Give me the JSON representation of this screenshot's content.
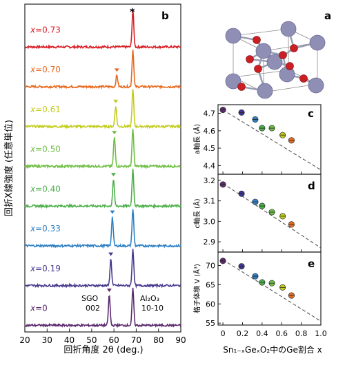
{
  "panel_labels": {
    "a": "a",
    "b": "b",
    "c": "c",
    "d": "d",
    "e": "e"
  },
  "crystal": {
    "icon": "rutile-crystal-structure-icon",
    "colors": {
      "cation": "#8f8fb6",
      "oxygen": "#cc1f24",
      "bond": "#9aa0b4",
      "cell": "#8a8a8a"
    }
  },
  "chart_data": [
    {
      "id": "b",
      "type": "line",
      "title": "",
      "xlabel": "回折角度 2θ (deg.)",
      "ylabel": "回折X線強度 (任意単位)",
      "xlim": [
        20,
        90
      ],
      "xticks": [
        "20",
        "30",
        "40",
        "50",
        "60",
        "70",
        "80",
        "90"
      ],
      "series": [
        {
          "name": "x=0.73",
          "color": "#d81f26",
          "peaks": [
            [
              68.5,
              1.0
            ]
          ]
        },
        {
          "name": "x=0.70",
          "color": "#e8691e",
          "peaks": [
            [
              61.3,
              0.32
            ],
            [
              68.5,
              1.0
            ]
          ]
        },
        {
          "name": "x=0.61",
          "color": "#c3cc1c",
          "peaks": [
            [
              60.8,
              0.55
            ],
            [
              68.5,
              1.0
            ]
          ]
        },
        {
          "name": "x=0.50",
          "color": "#6fbf44",
          "peaks": [
            [
              60.2,
              0.78
            ],
            [
              68.5,
              1.0
            ]
          ]
        },
        {
          "name": "x=0.40",
          "color": "#4db04a",
          "peaks": [
            [
              59.8,
              0.72
            ],
            [
              68.5,
              1.0
            ]
          ]
        },
        {
          "name": "x=0.33",
          "color": "#2f80c4",
          "peaks": [
            [
              59.3,
              0.78
            ],
            [
              68.5,
              1.0
            ]
          ]
        },
        {
          "name": "x=0.19",
          "color": "#4a3a8f",
          "peaks": [
            [
              58.6,
              0.72
            ],
            [
              68.5,
              1.0
            ]
          ]
        },
        {
          "name": "x=0",
          "color": "#5b2a6e",
          "peaks": [
            [
              57.9,
              0.82
            ],
            [
              68.5,
              1.0
            ]
          ]
        }
      ],
      "annotations": {
        "star": "*",
        "sgo": [
          "SGO",
          "002"
        ],
        "al2o3": [
          "Al₂O₃",
          "10-10"
        ]
      }
    },
    {
      "id": "c",
      "type": "scatter",
      "ylabel": "a軸長 (Å)",
      "ylim": [
        4.35,
        4.75
      ],
      "yticks": [
        "4.4",
        "4.5",
        "4.6",
        "4.7"
      ],
      "x": [
        0,
        0.19,
        0.33,
        0.4,
        0.5,
        0.61,
        0.7
      ],
      "values": [
        4.72,
        4.705,
        4.665,
        4.615,
        4.615,
        4.575,
        4.545
      ],
      "trend": [
        [
          0,
          4.72
        ],
        [
          1,
          4.375
        ]
      ]
    },
    {
      "id": "d",
      "type": "scatter",
      "ylabel": "c軸長 (Å)",
      "ylim": [
        2.85,
        3.23
      ],
      "yticks": [
        "2.9",
        "3.0",
        "3.1",
        "3.2"
      ],
      "x": [
        0,
        0.19,
        0.33,
        0.4,
        0.5,
        0.61,
        0.7
      ],
      "values": [
        3.18,
        3.135,
        3.095,
        3.075,
        3.045,
        3.025,
        2.985
      ],
      "trend": [
        [
          0,
          3.185
        ],
        [
          1,
          2.87
        ]
      ]
    },
    {
      "id": "e",
      "type": "scatter",
      "ylabel": "格子体積 V (Å³)",
      "ylim": [
        54.5,
        73.5
      ],
      "yticks": [
        "55",
        "60",
        "65",
        "70"
      ],
      "x": [
        0,
        0.19,
        0.33,
        0.4,
        0.5,
        0.61,
        0.7
      ],
      "values": [
        71.2,
        69.8,
        67.2,
        65.6,
        65.4,
        64.3,
        62.2
      ],
      "trend": [
        [
          0,
          71.5
        ],
        [
          1,
          55.5
        ]
      ]
    }
  ],
  "shared_x": {
    "xlabel": "Sn₁₋ₓGeₓO₂中のGe割合 x",
    "xlim": [
      -0.05,
      1.0
    ],
    "xticks": [
      "0",
      "0.2",
      "0.4",
      "0.6",
      "0.8",
      "1.0"
    ],
    "tick_values": [
      0,
      0.2,
      0.4,
      0.6,
      0.8,
      1.0
    ],
    "point_colors": [
      "#5b2a6e",
      "#3d3591",
      "#2f80c4",
      "#4db04a",
      "#6fbf44",
      "#c3cc1c",
      "#e8691e"
    ]
  }
}
